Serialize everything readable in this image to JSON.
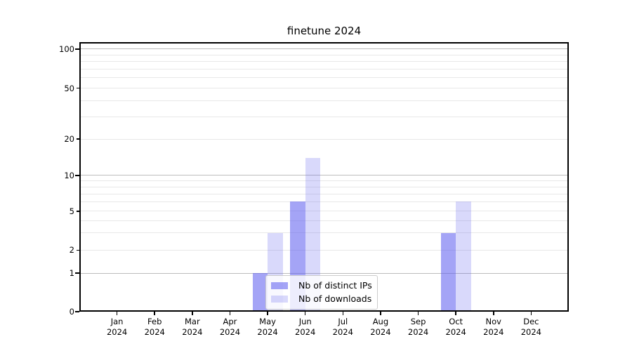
{
  "chart_data": {
    "type": "bar",
    "title": "finetune 2024",
    "x": {
      "categories": [
        "Jan",
        "Feb",
        "Mar",
        "Apr",
        "May",
        "Jun",
        "Jul",
        "Aug",
        "Sep",
        "Oct",
        "Nov",
        "Dec"
      ],
      "year_label": "2024"
    },
    "y": {
      "scale": "log-like",
      "labeled_ticks": [
        0,
        1,
        2,
        5,
        10,
        20,
        50,
        100
      ],
      "major_gridlines": [
        1,
        10,
        100
      ],
      "minor_gridlines": [
        2,
        3,
        4,
        5,
        6,
        7,
        8,
        9,
        20,
        30,
        40,
        50,
        60,
        70,
        80,
        90
      ],
      "ylim": [
        0,
        113
      ]
    },
    "series": [
      {
        "name": "Nb of distinct IPs",
        "color": "rgba(95,95,240,0.57)",
        "values": [
          0,
          0,
          0,
          0,
          1,
          6,
          0,
          0,
          0,
          3,
          0,
          0
        ]
      },
      {
        "name": "Nb of downloads",
        "color": "rgba(95,95,240,0.24)",
        "values": [
          0,
          0,
          0,
          0,
          3,
          14,
          0,
          0,
          0,
          6,
          0,
          0
        ]
      }
    ],
    "legend": {
      "position": "lower-center"
    },
    "grid": true
  },
  "colors": {
    "background": "#ffffff",
    "axis": "#000000",
    "text": "#000000",
    "grid_major": "#bcbcbc",
    "grid_minor": "#e8e8e8",
    "legend_border": "#cccccc"
  }
}
